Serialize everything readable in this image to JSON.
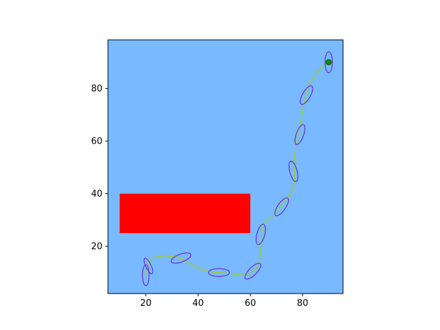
{
  "chart_data": {
    "type": "path-planning-plot",
    "title": "",
    "xlabel": "",
    "ylabel": "",
    "xlim": [
      5.5,
      95.5
    ],
    "ylim": [
      2,
      98.5
    ],
    "xticks": [
      20,
      40,
      60,
      80
    ],
    "yticks": [
      20,
      40,
      60,
      80
    ],
    "grid": false,
    "legend": "none",
    "colors": {
      "background": "#78b9ff",
      "obstacle": "#ff0000",
      "path": "#9acd32",
      "ellipse": "#6a2bd6",
      "goal": "#0a8a0a",
      "goal_outline": "#0a5a0a"
    },
    "obstacle": {
      "x": 10,
      "y": 25,
      "width": 50,
      "height": 15
    },
    "path": [
      [
        20,
        9
      ],
      [
        20.4,
        11.5
      ],
      [
        21.5,
        14.3
      ],
      [
        23.5,
        15.8
      ],
      [
        27,
        16.3
      ],
      [
        31,
        16.1
      ],
      [
        35,
        14.6
      ],
      [
        38,
        12.8
      ],
      [
        41,
        11.2
      ],
      [
        45,
        10.2
      ],
      [
        49,
        9.9
      ],
      [
        53,
        9.5
      ],
      [
        57,
        9
      ],
      [
        60,
        9.6
      ],
      [
        62.3,
        11.5
      ],
      [
        63.5,
        14.5
      ],
      [
        64,
        18.5
      ],
      [
        64.2,
        23
      ],
      [
        64.6,
        27
      ],
      [
        66,
        29.5
      ],
      [
        68.5,
        31.5
      ],
      [
        71,
        34.5
      ],
      [
        73,
        37.5
      ],
      [
        75.5,
        40
      ],
      [
        76.8,
        44
      ],
      [
        77,
        49
      ],
      [
        77,
        54
      ],
      [
        77.5,
        59
      ],
      [
        78.8,
        65
      ],
      [
        79.8,
        70
      ],
      [
        80.5,
        74.5
      ],
      [
        81.5,
        79
      ],
      [
        83,
        82.5
      ],
      [
        85,
        85.5
      ],
      [
        87,
        88
      ],
      [
        88.5,
        89.5
      ],
      [
        90,
        90
      ]
    ],
    "ellipses": [
      {
        "cx": 20,
        "cy": 9,
        "w": 2.5,
        "h": 8,
        "angle": 0
      },
      {
        "cx": 21,
        "cy": 12.5,
        "w": 2,
        "h": 6.5,
        "angle": -25
      },
      {
        "cx": 33.5,
        "cy": 15.5,
        "w": 8,
        "h": 3,
        "angle": -20
      },
      {
        "cx": 48,
        "cy": 10,
        "w": 8,
        "h": 3,
        "angle": 0
      },
      {
        "cx": 61,
        "cy": 10.5,
        "w": 3,
        "h": 8,
        "angle": 45
      },
      {
        "cx": 64,
        "cy": 24.5,
        "w": 3,
        "h": 8,
        "angle": 15
      },
      {
        "cx": 72,
        "cy": 35,
        "w": 3,
        "h": 8,
        "angle": 35
      },
      {
        "cx": 76.5,
        "cy": 48.5,
        "w": 2.8,
        "h": 8,
        "angle": -15
      },
      {
        "cx": 79,
        "cy": 62.5,
        "w": 2.8,
        "h": 8,
        "angle": 20
      },
      {
        "cx": 81.5,
        "cy": 77.5,
        "w": 3,
        "h": 8,
        "angle": 30
      },
      {
        "cx": 90,
        "cy": 90,
        "w": 2.8,
        "h": 8,
        "angle": 0
      }
    ],
    "goal": {
      "x": 90,
      "y": 90
    }
  }
}
